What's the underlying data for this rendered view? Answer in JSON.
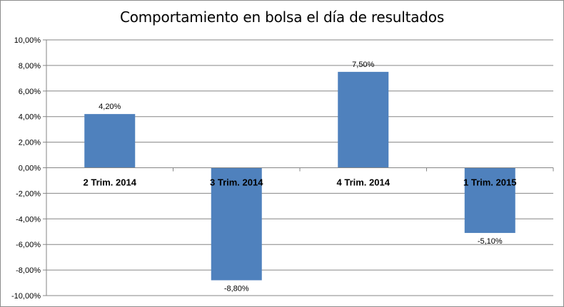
{
  "chart_data": {
    "type": "bar",
    "title": "Comportamiento en bolsa el día de resultados",
    "categories": [
      "2 Trim. 2014",
      "3 Trim. 2014",
      "4 Trim. 2014",
      "1 Trim. 2015"
    ],
    "values": [
      4.2,
      -8.8,
      7.5,
      -5.1
    ],
    "data_labels": [
      "4,20%",
      "-8,80%",
      "7,50%",
      "-5,10%"
    ],
    "yticks": [
      "10,00%",
      "8,00%",
      "6,00%",
      "4,00%",
      "2,00%",
      "0,00%",
      "-2,00%",
      "-4,00%",
      "-6,00%",
      "-8,00%",
      "-10,00%"
    ],
    "ylim": [
      -10,
      10
    ],
    "ylabel": "",
    "xlabel": "",
    "grid": true,
    "legend": "none",
    "bar_color": "#4f81bd"
  }
}
